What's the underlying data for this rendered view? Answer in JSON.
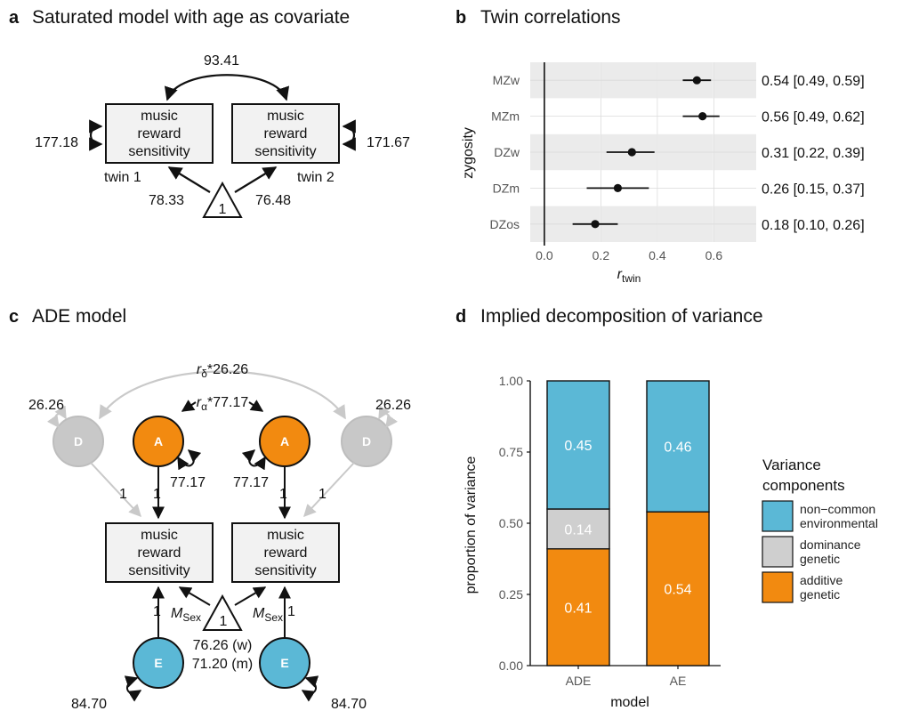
{
  "panel_a": {
    "letter": "a",
    "title": "Saturated model with age as covariate",
    "box_lines": [
      "music",
      "reward",
      "sensitivity"
    ],
    "twin1_label": "twin 1",
    "twin2_label": "twin 2",
    "covariance": "93.41",
    "var_twin1": "177.18",
    "var_twin2": "171.67",
    "mean_twin1": "78.33",
    "mean_twin2": "76.48",
    "constant": "1"
  },
  "panel_b": {
    "letter": "b",
    "title": "Twin correlations",
    "chart_data": {
      "type": "scatter",
      "title": "Twin correlations",
      "ylabel": "zygosity",
      "xlabel_main": "r",
      "xlabel_sub": "twin",
      "categories": [
        "MZw",
        "MZm",
        "DZw",
        "DZm",
        "DZos"
      ],
      "estimates": [
        0.54,
        0.56,
        0.31,
        0.26,
        0.18
      ],
      "ci_low": [
        0.49,
        0.49,
        0.22,
        0.15,
        0.1
      ],
      "ci_high": [
        0.59,
        0.62,
        0.39,
        0.37,
        0.26
      ],
      "labels": [
        "0.54 [0.49, 0.59]",
        "0.56 [0.49, 0.62]",
        "0.31 [0.22, 0.39]",
        "0.26 [0.15, 0.37]",
        "0.18 [0.10, 0.26]"
      ],
      "xticks": [
        "0.0",
        "0.2",
        "0.4",
        "0.6"
      ],
      "xlim": [
        -0.05,
        0.75
      ],
      "vline_at": 0
    }
  },
  "panel_c": {
    "letter": "c",
    "title": "ADE model",
    "box_lines": [
      "music",
      "reward",
      "sensitivity"
    ],
    "node_A": "A",
    "node_D": "D",
    "node_E": "E",
    "node_colors": {
      "A": "#f28a10",
      "D": "#c8c8c8",
      "E": "#5bb8d6"
    },
    "var_D": "26.26",
    "var_A": "77.17",
    "var_E": "84.70",
    "r_delta_sym": "r",
    "r_delta_sub": "δ",
    "r_delta_val": "*26.26",
    "r_alpha_sym": "r",
    "r_alpha_sub": "α",
    "r_alpha_val": "*77.17",
    "path_one": "1",
    "constant": "1",
    "m_sex_sym": "M",
    "m_sex_sub": "Sex",
    "mean_w": "76.26 (w)",
    "mean_m": "71.20 (m)"
  },
  "panel_d": {
    "letter": "d",
    "title": "Implied decomposition of variance",
    "chart_data": {
      "type": "bar",
      "stacked": true,
      "ylabel": "proportion of variance",
      "xlabel": "model",
      "categories": [
        "ADE",
        "AE"
      ],
      "series": [
        {
          "name": "additive genetic",
          "values": [
            0.41,
            0.54
          ],
          "color": "#f28a10",
          "labels": [
            "0.41",
            "0.54"
          ]
        },
        {
          "name": "dominance genetic",
          "values": [
            0.14,
            0.0
          ],
          "color": "#cfcfcf",
          "labels": [
            "0.14",
            ""
          ]
        },
        {
          "name": "non−common environmental",
          "values": [
            0.45,
            0.46
          ],
          "color": "#5bb8d6",
          "labels": [
            "0.45",
            "0.46"
          ]
        }
      ],
      "yticks": [
        "0.00",
        "0.25",
        "0.50",
        "0.75",
        "1.00"
      ],
      "ylim": [
        0,
        1
      ],
      "legend": {
        "title_lines": [
          "Variance",
          "components"
        ],
        "items": [
          {
            "lines": [
              "non−common",
              "environmental"
            ],
            "color": "#5bb8d6"
          },
          {
            "lines": [
              "dominance",
              "genetic"
            ],
            "color": "#cfcfcf"
          },
          {
            "lines": [
              "additive",
              "genetic"
            ],
            "color": "#f28a10"
          }
        ],
        "position": "right"
      }
    }
  }
}
